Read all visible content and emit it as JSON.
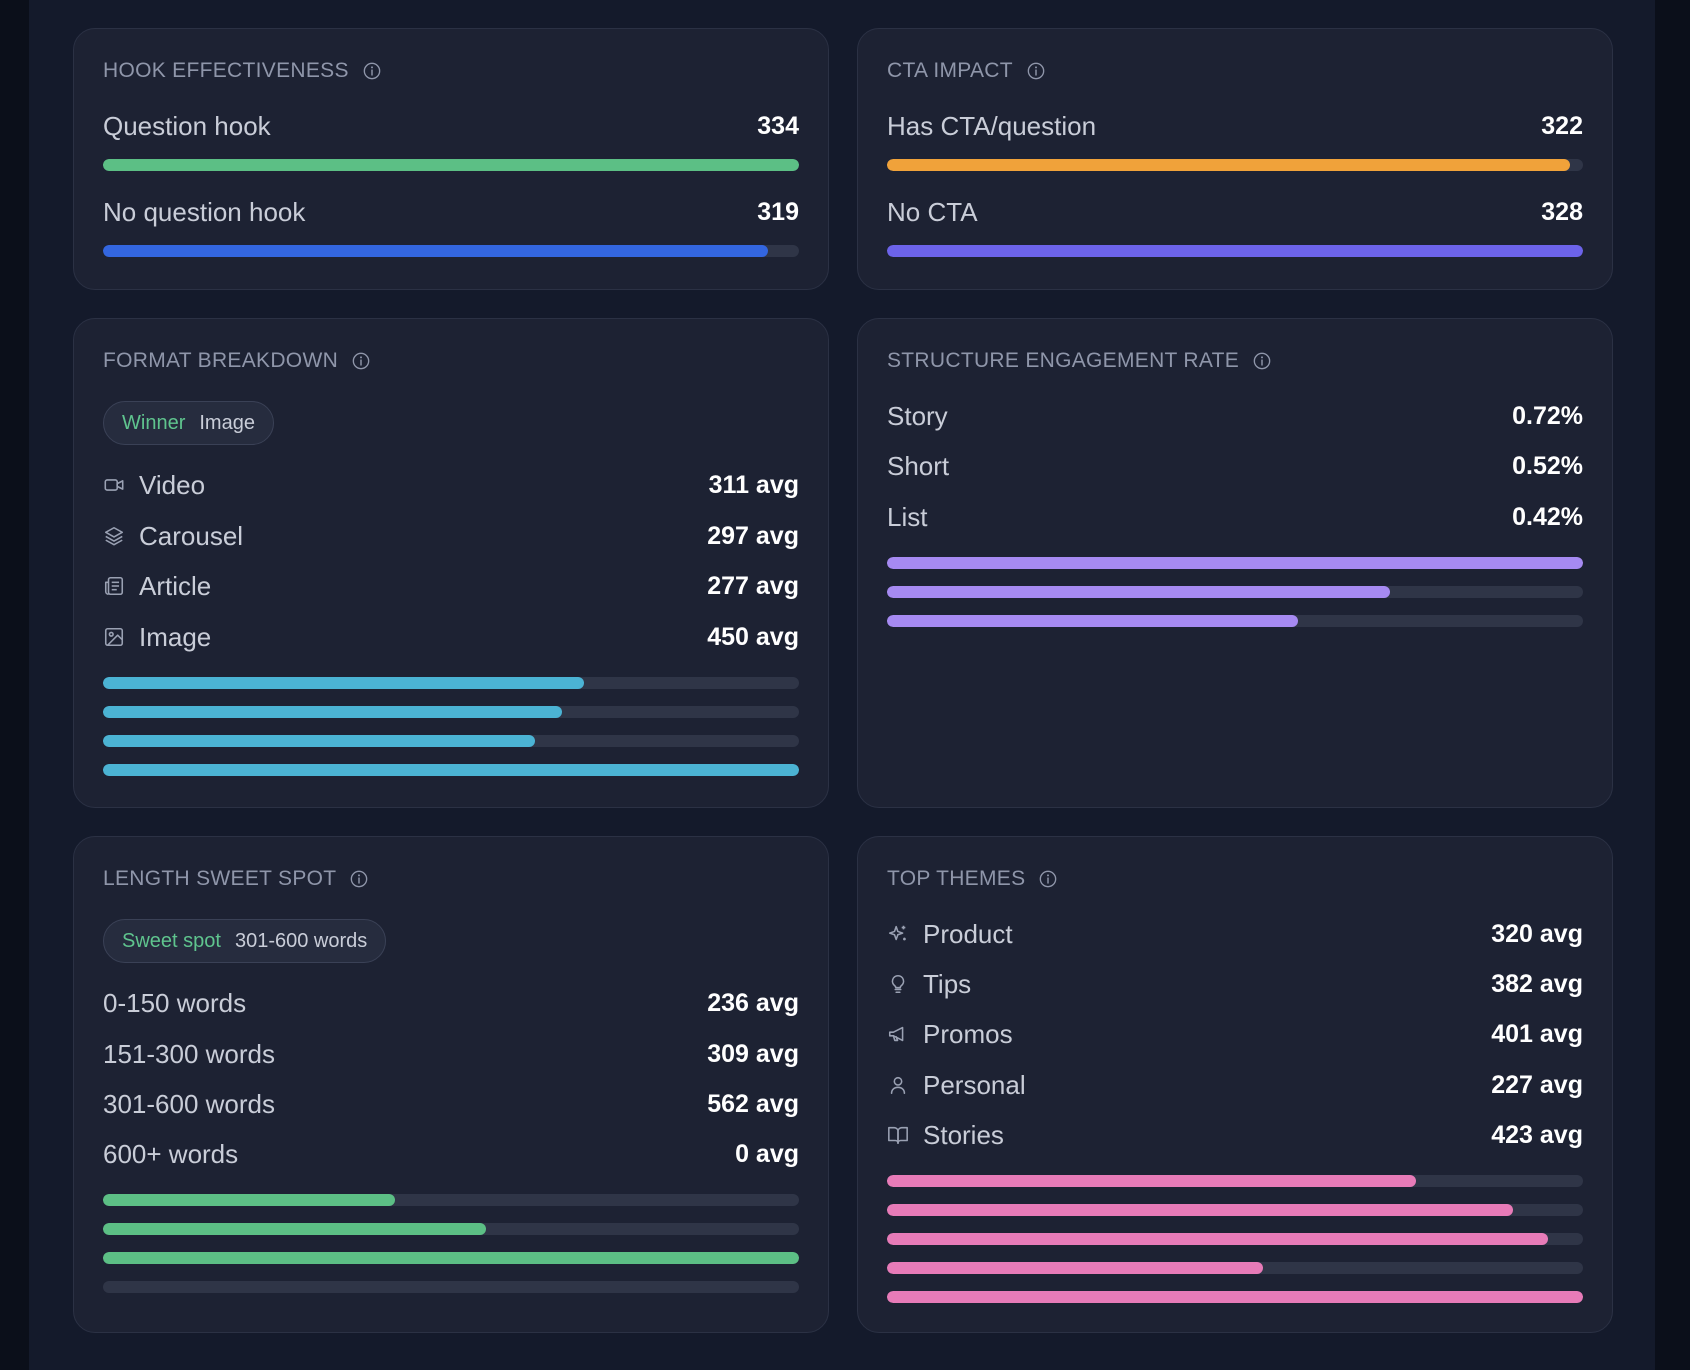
{
  "colors": {
    "green": "#5cbf85",
    "blue": "#3366e0",
    "orange": "#f0a23a",
    "indigo": "#6c63ea",
    "cyan": "#4bb3d4",
    "purple": "#a68af2",
    "pink": "#e77bb8"
  },
  "hook": {
    "title": "HOOK EFFECTIVENESS",
    "rows": [
      {
        "label": "Question hook",
        "value": "334",
        "fraction": 1.0
      },
      {
        "label": "No question hook",
        "value": "319",
        "fraction": 0.955
      }
    ]
  },
  "cta": {
    "title": "CTA IMPACT",
    "rows": [
      {
        "label": "Has CTA/question",
        "value": "322",
        "fraction": 0.982
      },
      {
        "label": "No CTA",
        "value": "328",
        "fraction": 1.0
      }
    ]
  },
  "format": {
    "title": "FORMAT BREAKDOWN",
    "pill_accent": "Winner",
    "pill_text": "Image",
    "rows": [
      {
        "icon": "video-icon",
        "label": "Video",
        "value": "311 avg",
        "fraction": 0.691
      },
      {
        "icon": "layers-icon",
        "label": "Carousel",
        "value": "297 avg",
        "fraction": 0.66
      },
      {
        "icon": "newspaper-icon",
        "label": "Article",
        "value": "277 avg",
        "fraction": 0.62
      },
      {
        "icon": "image-icon",
        "label": "Image",
        "value": "450 avg",
        "fraction": 1.0
      }
    ]
  },
  "structure": {
    "title": "STRUCTURE ENGAGEMENT RATE",
    "rows": [
      {
        "label": "Story",
        "value": "0.72%",
        "fraction": 1.0
      },
      {
        "label": "Short",
        "value": "0.52%",
        "fraction": 0.722
      },
      {
        "label": "List",
        "value": "0.42%",
        "fraction": 0.59
      }
    ]
  },
  "length": {
    "title": "LENGTH SWEET SPOT",
    "pill_accent": "Sweet spot",
    "pill_text": "301-600 words",
    "rows": [
      {
        "label": "0-150 words",
        "value": "236 avg",
        "fraction": 0.42
      },
      {
        "label": "151-300 words",
        "value": "309 avg",
        "fraction": 0.55
      },
      {
        "label": "301-600 words",
        "value": "562 avg",
        "fraction": 1.0
      },
      {
        "label": "600+ words",
        "value": "0 avg",
        "fraction": 0.0
      }
    ]
  },
  "themes": {
    "title": "TOP THEMES",
    "rows": [
      {
        "icon": "sparkles-icon",
        "label": "Product",
        "value": "320 avg",
        "fraction": 0.76
      },
      {
        "icon": "lightbulb-icon",
        "label": "Tips",
        "value": "382 avg",
        "fraction": 0.9
      },
      {
        "icon": "megaphone-icon",
        "label": "Promos",
        "value": "401 avg",
        "fraction": 0.95
      },
      {
        "icon": "user-icon",
        "label": "Personal",
        "value": "227 avg",
        "fraction": 0.54
      },
      {
        "icon": "book-icon",
        "label": "Stories",
        "value": "423 avg",
        "fraction": 1.0
      }
    ]
  }
}
